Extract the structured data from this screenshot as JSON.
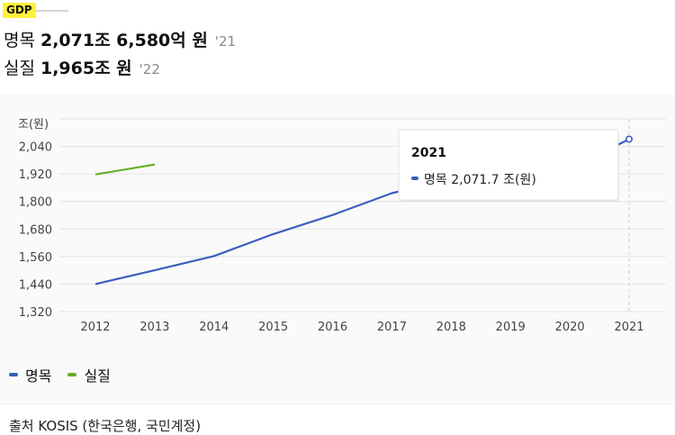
{
  "header": {
    "tag": "GDP",
    "nominal": {
      "label": "명목",
      "value": "2,071조 6,580억 원",
      "year": "'21"
    },
    "real": {
      "label": "실질",
      "value": "1,965조 원",
      "year": "'22"
    }
  },
  "tooltip": {
    "year": "2021",
    "series": "명목",
    "value": "2,071.7 조(원)"
  },
  "legend": {
    "nominal": "명목",
    "real": "실질"
  },
  "source": "출처 KOSIS (한국은행, 국민계정)",
  "colors": {
    "nominal": "#3b5fbf",
    "real": "#6aac2d",
    "tag_bg": "#fff23a"
  },
  "chart_data": {
    "type": "line",
    "ylabel": "조(원)",
    "x": [
      "2012",
      "2013",
      "2014",
      "2015",
      "2016",
      "2017",
      "2018",
      "2019",
      "2020",
      "2021"
    ],
    "yticks": [
      "1,320",
      "1,440",
      "1,560",
      "1,680",
      "1,800",
      "1,920",
      "2,040"
    ],
    "ylim": [
      1320,
      2160
    ],
    "grid": true,
    "legend_position": "bottom-left",
    "series": [
      {
        "name": "명목",
        "values": [
          1440,
          1500,
          1562,
          1658,
          1741,
          1836,
          1898,
          1924,
          1941,
          2071.7
        ]
      },
      {
        "name": "실질",
        "values": [
          1918,
          1961,
          null,
          null,
          null,
          null,
          null,
          null,
          null,
          null
        ]
      }
    ]
  }
}
